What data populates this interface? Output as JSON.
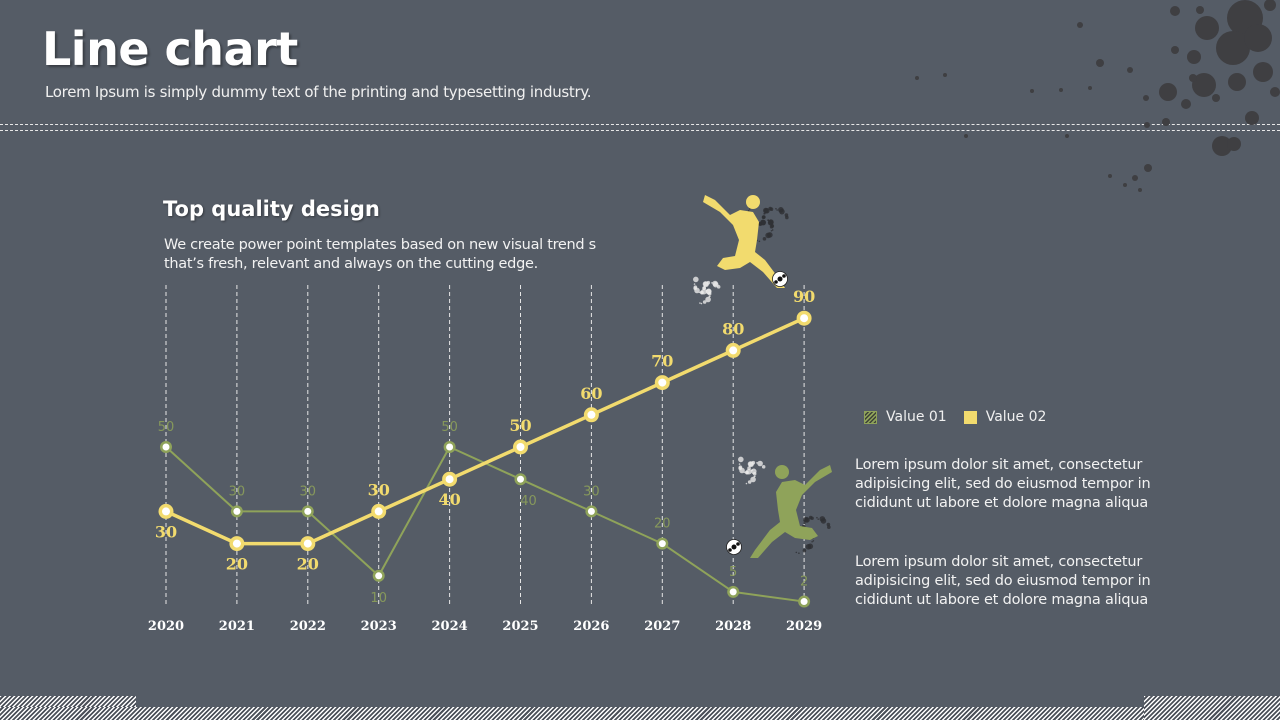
{
  "header": {
    "title": "Line chart",
    "subtitle": "Lorem Ipsum is simply dummy text of the printing and typesetting industry."
  },
  "section": {
    "title": "Top quality design",
    "description": "We create power point templates based on new visual trend s that’s fresh, relevant and always on the cutting edge."
  },
  "legend": [
    {
      "label": "Value 01",
      "style": "hatched",
      "color": "#8fa35a"
    },
    {
      "label": "Value 02",
      "style": "solid",
      "color": "#f2db6e"
    }
  ],
  "paragraphs": [
    "Lorem ipsum dolor sit amet, consectetur adipisicing elit, sed do eiusmod tempor in cididunt ut labore et dolore magna aliqua",
    "Lorem ipsum dolor sit amet, consectetur adipisicing elit, sed do eiusmod tempor in cididunt ut labore et dolore magna aliqua"
  ],
  "icons": [
    "player-kicking-yellow-icon",
    "player-kicking-green-icon",
    "soccer-ball-icon",
    "ink-splatter-decoration"
  ],
  "chart_data": {
    "type": "line",
    "title": "",
    "xlabel": "",
    "ylabel": "",
    "x": [
      "2020",
      "2021",
      "2022",
      "2023",
      "2024",
      "2025",
      "2026",
      "2027",
      "2028",
      "2029"
    ],
    "ylim": [
      0,
      100
    ],
    "grid": "vertical-dashed",
    "legend_position": "right",
    "series": [
      {
        "name": "Value 01",
        "color": "#8fa35a",
        "values": [
          50,
          30,
          30,
          10,
          50,
          40,
          30,
          20,
          5,
          2
        ]
      },
      {
        "name": "Value 02",
        "color": "#f2db6e",
        "values": [
          30,
          20,
          20,
          30,
          40,
          50,
          60,
          70,
          80,
          90
        ]
      }
    ]
  }
}
